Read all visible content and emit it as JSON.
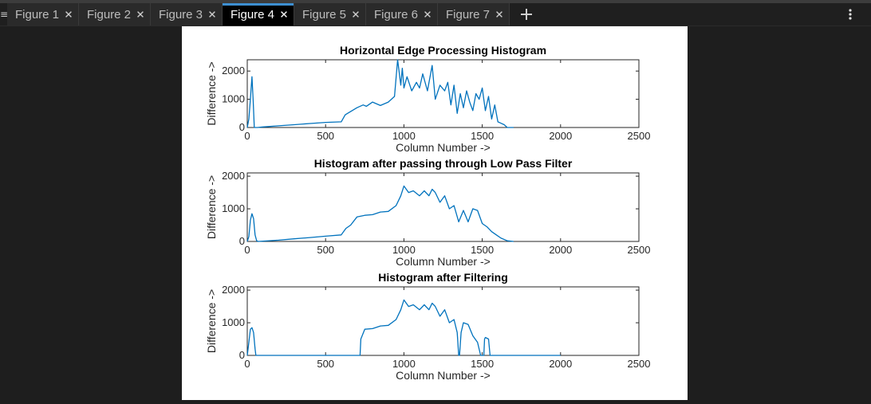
{
  "tabs": [
    {
      "label": "Figure 1",
      "active": false
    },
    {
      "label": "Figure 2",
      "active": false
    },
    {
      "label": "Figure 3",
      "active": false
    },
    {
      "label": "Figure 4",
      "active": true
    },
    {
      "label": "Figure 5",
      "active": false
    },
    {
      "label": "Figure 6",
      "active": false
    },
    {
      "label": "Figure 7",
      "active": false
    }
  ],
  "toolbar": {
    "menu_glyph": "≡",
    "add_icon": "plus-icon",
    "more_icon": "more-vertical-icon"
  },
  "colors": {
    "line": "#0072bd",
    "accent": "#3d8fd1",
    "background": "#1e1e1e",
    "tab_active": "#000000"
  },
  "chart_data": [
    {
      "type": "line",
      "title": "Horizontal Edge Processing Histogram",
      "xlabel": "Column Number ->",
      "ylabel": "Difference ->",
      "xlim": [
        0,
        2500
      ],
      "ylim": [
        0,
        2400
      ],
      "xticks": [
        "0",
        "500",
        "1000",
        "1500",
        "2000",
        "2500"
      ],
      "yticks": [
        "0",
        "1000",
        "2000"
      ],
      "grid": false,
      "series": [
        {
          "x": [
            0,
            10,
            20,
            30,
            38,
            45,
            55,
            65,
            100,
            200,
            300,
            400,
            500,
            600,
            625,
            640,
            700,
            740,
            760,
            800,
            850,
            900,
            940,
            960,
            980,
            990,
            1000,
            1020,
            1050,
            1080,
            1100,
            1120,
            1150,
            1180,
            1200,
            1230,
            1260,
            1280,
            1300,
            1320,
            1340,
            1360,
            1380,
            1400,
            1420,
            1440,
            1460,
            1480,
            1500,
            1520,
            1540,
            1560,
            1580,
            1600,
            1620,
            1640,
            1660,
            1680,
            1700
          ],
          "y": [
            0,
            300,
            1000,
            1800,
            900,
            0,
            0,
            0,
            20,
            60,
            100,
            140,
            180,
            200,
            450,
            500,
            700,
            800,
            750,
            900,
            780,
            900,
            1100,
            2400,
            1500,
            2100,
            1400,
            1800,
            1300,
            1600,
            1400,
            1900,
            1300,
            2200,
            1000,
            1500,
            1300,
            1600,
            800,
            1500,
            500,
            1200,
            700,
            1300,
            900,
            600,
            1200,
            1000,
            1400,
            600,
            1100,
            300,
            800,
            200,
            150,
            100,
            0,
            0,
            0
          ]
        }
      ]
    },
    {
      "type": "line",
      "title": "Histogram after passing through Low Pass Filter",
      "xlabel": "Column Number ->",
      "ylabel": "Difference ->",
      "xlim": [
        0,
        2500
      ],
      "ylim": [
        0,
        2100
      ],
      "xticks": [
        "0",
        "500",
        "1000",
        "1500",
        "2000",
        "2500"
      ],
      "yticks": [
        "0",
        "1000",
        "2000"
      ],
      "grid": false,
      "series": [
        {
          "x": [
            0,
            10,
            20,
            30,
            40,
            50,
            60,
            70,
            100,
            200,
            300,
            400,
            500,
            600,
            630,
            660,
            700,
            750,
            800,
            850,
            900,
            950,
            980,
            1000,
            1030,
            1060,
            1100,
            1130,
            1160,
            1180,
            1200,
            1230,
            1260,
            1290,
            1320,
            1350,
            1380,
            1410,
            1440,
            1470,
            1500,
            1530,
            1560,
            1590,
            1620,
            1660,
            1700
          ],
          "y": [
            0,
            150,
            650,
            850,
            700,
            200,
            20,
            0,
            10,
            40,
            80,
            120,
            160,
            200,
            400,
            500,
            750,
            800,
            820,
            900,
            920,
            1100,
            1400,
            1700,
            1500,
            1550,
            1400,
            1550,
            1400,
            1600,
            1500,
            1200,
            1400,
            1000,
            1100,
            600,
            950,
            600,
            1000,
            950,
            550,
            450,
            300,
            200,
            100,
            20,
            0
          ]
        }
      ]
    },
    {
      "type": "line",
      "title": "Histogram after Filtering",
      "xlabel": "Column Number ->",
      "ylabel": "Difference ->",
      "xlim": [
        0,
        2500
      ],
      "ylim": [
        0,
        2100
      ],
      "xticks": [
        "0",
        "500",
        "1000",
        "1500",
        "2000",
        "2500"
      ],
      "yticks": [
        "0",
        "1000",
        "2000"
      ],
      "grid": false,
      "series": [
        {
          "x": [
            0,
            10,
            20,
            30,
            40,
            50,
            55,
            60,
            700,
            720,
            725,
            750,
            800,
            850,
            900,
            950,
            980,
            1000,
            1030,
            1060,
            1100,
            1130,
            1160,
            1180,
            1200,
            1230,
            1260,
            1290,
            1320,
            1340,
            1350,
            1355,
            1365,
            1380,
            1410,
            1440,
            1470,
            1490,
            1495,
            1500,
            1510,
            1515,
            1520,
            1540,
            1550,
            1560,
            1600,
            1700,
            2000
          ],
          "y": [
            0,
            400,
            800,
            850,
            700,
            200,
            0,
            0,
            0,
            0,
            500,
            800,
            820,
            900,
            920,
            1100,
            1400,
            1700,
            1500,
            1550,
            1400,
            1550,
            1400,
            1600,
            1500,
            1200,
            1400,
            1000,
            1100,
            700,
            0,
            0,
            700,
            1000,
            950,
            600,
            400,
            0,
            0,
            0,
            0,
            500,
            550,
            500,
            0,
            0,
            0,
            0,
            0
          ]
        }
      ]
    }
  ]
}
